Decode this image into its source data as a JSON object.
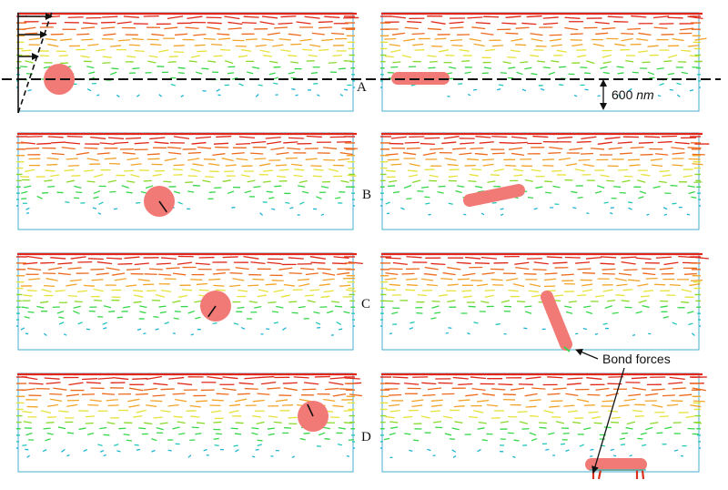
{
  "row_labels": [
    "A",
    "B",
    "C",
    "D"
  ],
  "scale_bar": {
    "value": "600",
    "unit": "nm"
  },
  "callout": "Bond forces",
  "colors": {
    "flow_gradient": [
      "#1fb3d4",
      "#22c7b8",
      "#37d64a",
      "#8ad92a",
      "#e6e23a",
      "#f2a428",
      "#ec6a1e",
      "#e02818"
    ],
    "cell": "#f27a76",
    "cell_marker": "#111111",
    "channel_border": "#4aaed6",
    "channel_top": "#e0261a"
  },
  "panels": [
    {
      "row": "A",
      "side": "left",
      "cell": "sphere",
      "state": "initial-position"
    },
    {
      "row": "A",
      "side": "right",
      "cell": "rod",
      "state": "horizontal"
    },
    {
      "row": "B",
      "side": "left",
      "cell": "sphere",
      "state": "rotating"
    },
    {
      "row": "B",
      "side": "right",
      "cell": "rod",
      "state": "tilted"
    },
    {
      "row": "C",
      "side": "left",
      "cell": "sphere",
      "state": "rotating"
    },
    {
      "row": "C",
      "side": "right",
      "cell": "rod",
      "state": "near-vertical"
    },
    {
      "row": "D",
      "side": "left",
      "cell": "sphere",
      "state": "rotating"
    },
    {
      "row": "D",
      "side": "right",
      "cell": "rod",
      "state": "adhered-to-wall"
    }
  ]
}
